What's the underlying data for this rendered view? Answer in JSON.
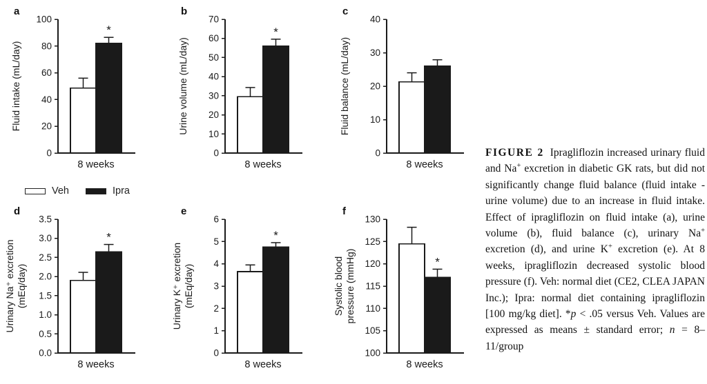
{
  "figure": {
    "x_category": "8 weeks",
    "significance_marker": "*",
    "bar_outline_color": "#1a1a1a",
    "veh_fill": "#ffffff",
    "ipra_fill": "#1a1a1a"
  },
  "legend": {
    "items": [
      {
        "label": "Veh",
        "fill": "#ffffff"
      },
      {
        "label": "Ipra",
        "fill": "#1a1a1a"
      }
    ]
  },
  "caption": {
    "heading": "FIGURE 2",
    "segments": [
      {
        "t": "FIGURE 2",
        "head": true
      },
      {
        "t": "Ipragliflozin increased urinary fluid and Na"
      },
      {
        "t": "+",
        "sup": true
      },
      {
        "t": " excretion in diabetic GK rats, but did not significantly change fluid balance (fluid intake - urine volume) due to an increase in fluid intake. Effect of ipragliflozin on fluid intake (a), urine volume (b), fluid balance (c), urinary Na"
      },
      {
        "t": "+",
        "sup": true
      },
      {
        "t": " excretion (d), and urine K"
      },
      {
        "t": "+",
        "sup": true
      },
      {
        "t": " excretion (e). At 8 weeks, ipragliflozin decreased systolic blood pressure (f). Veh: normal diet (CE2, CLEA JAPAN Inc.); Ipra: normal diet containing ipragliflozin [100 mg/kg diet]. *"
      },
      {
        "t": "p",
        "i": true
      },
      {
        "t": " < .05 versus Veh. Values are expressed as means ± standard error; "
      },
      {
        "t": "n",
        "i": true
      },
      {
        "t": " = 8–11/group"
      }
    ]
  },
  "chart_data": [
    {
      "panel": "a",
      "type": "bar",
      "title": "",
      "xlabel": "8 weeks",
      "ylabel": "Fluid intake (mL/day)",
      "ylabel_lines": [
        "Fluid intake (mL/day)"
      ],
      "categories": [
        "8 weeks"
      ],
      "ylim": [
        0,
        100
      ],
      "ytick_step": 20,
      "ytick_decimals": 0,
      "series": [
        {
          "name": "Veh",
          "value": 48.5,
          "error": 7.5,
          "significant": false
        },
        {
          "name": "Ipra",
          "value": 82,
          "error": 4.5,
          "significant": true
        }
      ]
    },
    {
      "panel": "b",
      "type": "bar",
      "title": "",
      "xlabel": "8 weeks",
      "ylabel": "Urine volume (mL/day)",
      "ylabel_lines": [
        "Urine volume (mL/day)"
      ],
      "categories": [
        "8 weeks"
      ],
      "ylim": [
        0,
        70
      ],
      "ytick_step": 10,
      "ytick_decimals": 0,
      "series": [
        {
          "name": "Veh",
          "value": 29.5,
          "error": 4.8,
          "significant": false
        },
        {
          "name": "Ipra",
          "value": 56,
          "error": 3.6,
          "significant": true
        }
      ]
    },
    {
      "panel": "c",
      "type": "bar",
      "title": "",
      "xlabel": "8 weeks",
      "ylabel": "Fluid balance (mL/day)",
      "ylabel_lines": [
        "Fluid balance (mL/day)"
      ],
      "categories": [
        "8 weeks"
      ],
      "ylim": [
        0,
        40
      ],
      "ytick_step": 10,
      "ytick_decimals": 0,
      "series": [
        {
          "name": "Veh",
          "value": 21.3,
          "error": 2.7,
          "significant": false
        },
        {
          "name": "Ipra",
          "value": 26,
          "error": 1.9,
          "significant": false
        }
      ]
    },
    {
      "panel": "d",
      "type": "bar",
      "title": "",
      "xlabel": "8 weeks",
      "ylabel": "Urinary Na⁺ excretion (mEq/day)",
      "ylabel_lines": [
        "Urinary Na⁺ excretion",
        "(mEq/day)"
      ],
      "categories": [
        "8 weeks"
      ],
      "ylim": [
        0,
        3.5
      ],
      "ytick_step": 0.5,
      "ytick_decimals": 1,
      "series": [
        {
          "name": "Veh",
          "value": 1.9,
          "error": 0.21,
          "significant": false
        },
        {
          "name": "Ipra",
          "value": 2.65,
          "error": 0.19,
          "significant": true
        }
      ]
    },
    {
      "panel": "e",
      "type": "bar",
      "title": "",
      "xlabel": "8 weeks",
      "ylabel": "Urinary K⁺ excretion (mEq/day)",
      "ylabel_lines": [
        "Urinary K⁺ excretion",
        "(mEq/day)"
      ],
      "categories": [
        "8 weeks"
      ],
      "ylim": [
        0,
        6
      ],
      "ytick_step": 1,
      "ytick_decimals": 0,
      "series": [
        {
          "name": "Veh",
          "value": 3.65,
          "error": 0.3,
          "significant": false
        },
        {
          "name": "Ipra",
          "value": 4.75,
          "error": 0.2,
          "significant": true
        }
      ]
    },
    {
      "panel": "f",
      "type": "bar",
      "title": "",
      "xlabel": "8 weeks",
      "ylabel": "Systolic blood pressure (mmHg)",
      "ylabel_lines": [
        "Systolic blood",
        "pressure (mmHg)"
      ],
      "categories": [
        "8 weeks"
      ],
      "ylim": [
        100,
        130
      ],
      "ytick_step": 5,
      "ytick_decimals": 0,
      "series": [
        {
          "name": "Veh",
          "value": 124.5,
          "error": 3.7,
          "significant": false
        },
        {
          "name": "Ipra",
          "value": 117,
          "error": 1.8,
          "significant": true
        }
      ]
    }
  ]
}
